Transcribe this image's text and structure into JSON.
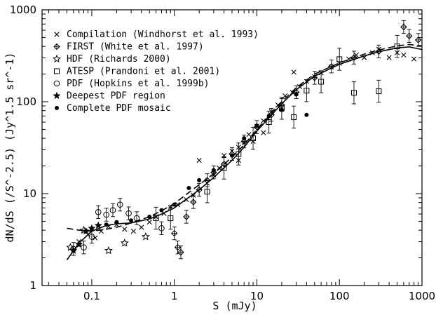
{
  "chart_data": {
    "type": "scatter",
    "xlabel": "S (mJy)",
    "ylabel": "dN/dS (/S^-2.5) (Jy^1.5 sr^-1)",
    "x_scale": "log",
    "y_scale": "log",
    "xlim": [
      0.025,
      1000
    ],
    "ylim": [
      1,
      1000
    ],
    "x_ticks": [
      {
        "value": 0.1,
        "label": "0.1"
      },
      {
        "value": 1,
        "label": "1"
      },
      {
        "value": 10,
        "label": "10"
      },
      {
        "value": 100,
        "label": "100"
      },
      {
        "value": 1000,
        "label": "1000"
      }
    ],
    "y_ticks": [
      {
        "value": 1,
        "label": "1"
      },
      {
        "value": 10,
        "label": "10"
      },
      {
        "value": 100,
        "label": "100"
      },
      {
        "value": 1000,
        "label": "1000"
      }
    ],
    "legend_position": "top-left",
    "series": [
      {
        "name": "Compilation (Windhorst et al. 1993)",
        "marker": "cross",
        "points": [
          [
            0.07,
            3.0
          ],
          [
            0.09,
            3.6
          ],
          [
            0.11,
            3.3
          ],
          [
            0.13,
            3.9
          ],
          [
            0.16,
            4.4
          ],
          [
            0.2,
            4.6
          ],
          [
            0.25,
            4.1
          ],
          [
            0.32,
            3.9
          ],
          [
            0.4,
            4.3
          ],
          [
            0.5,
            4.9
          ],
          [
            0.6,
            5.6
          ],
          [
            0.75,
            6.1
          ],
          [
            0.9,
            7.1
          ],
          [
            1.1,
            7.6
          ],
          [
            1.4,
            8.6
          ],
          [
            1.7,
            9.6
          ],
          [
            2.0,
            23
          ],
          [
            2.5,
            13
          ],
          [
            3.0,
            16
          ],
          [
            3.5,
            19
          ],
          [
            4.0,
            26
          ],
          [
            5.0,
            29
          ],
          [
            6.0,
            32
          ],
          [
            7.0,
            36
          ],
          [
            8.0,
            44
          ],
          [
            10,
            54
          ],
          [
            12,
            62
          ],
          [
            15,
            78
          ],
          [
            18,
            92
          ],
          [
            22,
            116
          ],
          [
            27,
            126
          ],
          [
            33,
            146
          ],
          [
            40,
            166
          ],
          [
            50,
            188
          ],
          [
            60,
            206
          ],
          [
            80,
            238
          ],
          [
            100,
            262
          ],
          [
            130,
            292
          ],
          [
            160,
            322
          ],
          [
            200,
            302
          ],
          [
            250,
            342
          ],
          [
            300,
            372
          ],
          [
            400,
            302
          ],
          [
            500,
            342
          ],
          [
            600,
            322
          ],
          [
            800,
            292
          ],
          [
            28,
            210
          ],
          [
            12,
            46
          ],
          [
            9,
            37
          ],
          [
            6,
            23
          ]
        ]
      },
      {
        "name": "FIRST (White et al. 1997)",
        "marker": "diamond-plus",
        "points": [
          [
            1.0,
            3.7
          ],
          [
            1.1,
            2.6
          ],
          [
            1.2,
            2.3
          ],
          [
            1.4,
            5.6
          ],
          [
            1.7,
            8.1
          ],
          [
            2.0,
            11
          ],
          [
            2.5,
            14
          ],
          [
            3.0,
            17
          ],
          [
            4.0,
            21
          ],
          [
            5.0,
            27
          ],
          [
            7.0,
            37
          ],
          [
            10,
            53
          ],
          [
            15,
            72
          ],
          [
            20,
            92
          ],
          [
            30,
            127
          ],
          [
            50,
            182
          ],
          [
            80,
            242
          ],
          [
            150,
            302
          ],
          [
            300,
            352
          ],
          [
            600,
            650
          ],
          [
            700,
            520
          ],
          [
            900,
            470
          ]
        ]
      },
      {
        "name": "HDF (Richards 2000)",
        "marker": "open-star",
        "points": [
          [
            0.055,
            2.6
          ],
          [
            0.08,
            4.0
          ],
          [
            0.16,
            2.4
          ],
          [
            0.25,
            2.9
          ],
          [
            0.45,
            3.4
          ]
        ]
      },
      {
        "name": "ATESP (Prandoni et al. 2001)",
        "marker": "open-square",
        "points": [
          [
            0.6,
            5.4
          ],
          [
            0.9,
            5.4
          ],
          [
            2.5,
            10.5
          ],
          [
            4.0,
            19
          ],
          [
            6.0,
            27
          ],
          [
            9.0,
            40
          ],
          [
            14,
            60
          ],
          [
            20,
            85
          ],
          [
            28,
            68
          ],
          [
            40,
            132
          ],
          [
            60,
            165
          ],
          [
            100,
            290
          ],
          [
            150,
            125
          ],
          [
            300,
            130
          ],
          [
            500,
            400
          ]
        ]
      },
      {
        "name": "PDF (Hopkins et al. 1999b)",
        "marker": "open-circle",
        "points": [
          [
            0.06,
            2.5
          ],
          [
            0.08,
            2.6
          ],
          [
            0.1,
            3.4
          ],
          [
            0.12,
            6.3
          ],
          [
            0.15,
            5.9
          ],
          [
            0.18,
            6.6
          ],
          [
            0.22,
            7.6
          ],
          [
            0.28,
            6.1
          ],
          [
            0.35,
            5.4
          ],
          [
            0.7,
            4.2
          ]
        ]
      },
      {
        "name": "Deepest PDF region",
        "marker": "filled-star",
        "points": [
          [
            0.06,
            2.4
          ],
          [
            0.07,
            2.8
          ],
          [
            0.085,
            3.9
          ],
          [
            0.1,
            4.2
          ],
          [
            0.12,
            4.5
          ]
        ]
      },
      {
        "name": "Complete PDF mosaic",
        "marker": "filled-circle",
        "points": [
          [
            0.15,
            4.6
          ],
          [
            0.2,
            4.9
          ],
          [
            0.3,
            5.1
          ],
          [
            0.5,
            5.6
          ],
          [
            0.7,
            6.6
          ],
          [
            1.0,
            7.6
          ],
          [
            1.5,
            11.5
          ],
          [
            2.0,
            14
          ],
          [
            3.0,
            18
          ],
          [
            5.0,
            26
          ],
          [
            7.0,
            40
          ],
          [
            10,
            55
          ],
          [
            14,
            70
          ],
          [
            20,
            82
          ],
          [
            30,
            120
          ],
          [
            40,
            72
          ]
        ]
      }
    ],
    "fit_curves": [
      {
        "style": "solid",
        "points": [
          [
            0.05,
            1.9
          ],
          [
            0.07,
            2.9
          ],
          [
            0.1,
            3.9
          ],
          [
            0.15,
            4.5
          ],
          [
            0.2,
            4.7
          ],
          [
            0.3,
            4.8
          ],
          [
            0.5,
            5.3
          ],
          [
            0.7,
            6.0
          ],
          [
            1,
            7.0
          ],
          [
            2,
            11
          ],
          [
            3,
            15
          ],
          [
            5,
            23
          ],
          [
            7,
            32
          ],
          [
            10,
            48
          ],
          [
            20,
            95
          ],
          [
            30,
            135
          ],
          [
            50,
            190
          ],
          [
            100,
            255
          ],
          [
            200,
            315
          ],
          [
            300,
            350
          ],
          [
            500,
            385
          ],
          [
            700,
            395
          ],
          [
            1000,
            370
          ]
        ]
      },
      {
        "style": "dashed",
        "points": [
          [
            0.05,
            4.2
          ],
          [
            0.07,
            4.0
          ],
          [
            0.1,
            3.9
          ],
          [
            0.15,
            4.1
          ],
          [
            0.2,
            4.3
          ],
          [
            0.3,
            4.8
          ],
          [
            0.5,
            5.6
          ],
          [
            0.7,
            6.5
          ],
          [
            1,
            7.8
          ],
          [
            2,
            12.5
          ],
          [
            3,
            16.5
          ],
          [
            5,
            25
          ],
          [
            7,
            34
          ],
          [
            10,
            50
          ],
          [
            20,
            100
          ],
          [
            30,
            142
          ],
          [
            50,
            200
          ],
          [
            100,
            265
          ],
          [
            200,
            330
          ],
          [
            300,
            365
          ],
          [
            500,
            405
          ],
          [
            700,
            420
          ],
          [
            1000,
            405
          ]
        ]
      }
    ]
  }
}
